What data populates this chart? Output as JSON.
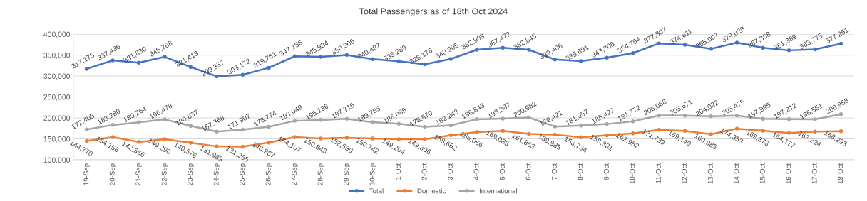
{
  "chart_data": {
    "type": "line",
    "title": "Total Passengers as of 18th Oct 2024",
    "categories": [
      "19-Sep",
      "20-Sep",
      "21-Sep",
      "22-Sep",
      "23-Sep",
      "24-Sep",
      "25-Sep",
      "26-Sep",
      "27-Sep",
      "28-Sep",
      "29-Sep",
      "30-Sep",
      "1-Oct",
      "2-Oct",
      "3-Oct",
      "4-Oct",
      "5-Oct",
      "6-Oct",
      "7-Oct",
      "8-Oct",
      "9-Oct",
      "10-Oct",
      "11-Oct",
      "12-Oct",
      "13-Oct",
      "14-Oct",
      "15-Oct",
      "16-Oct",
      "17-Oct",
      "18-Oct"
    ],
    "series": [
      {
        "name": "Total",
        "color": "#4472c4",
        "values": [
          317175,
          337436,
          331830,
          345768,
          321413,
          299357,
          303172,
          319761,
          347156,
          345984,
          350305,
          340497,
          335289,
          328176,
          340905,
          362909,
          367472,
          362845,
          339406,
          335691,
          343808,
          354754,
          377807,
          374811,
          365007,
          379828,
          367368,
          361389,
          363775,
          377251
        ],
        "value_labels": [
          "317,175",
          "337,436",
          "331,830",
          "345,768",
          "321,413",
          "299,357",
          "303,172",
          "319,761",
          "347,156",
          "345,984",
          "350,305",
          "340,497",
          "335,289",
          "328,176",
          "340,905",
          "362,909",
          "367,472",
          "362,845",
          "339,406",
          "335,691",
          "343,808",
          "354,754",
          "377,807",
          "374,811",
          "365,007",
          "379,828",
          "367,368",
          "361,389",
          "363,775",
          "377,251"
        ]
      },
      {
        "name": "Domestic",
        "color": "#ed7d31",
        "values": [
          144770,
          154156,
          142566,
          149290,
          140576,
          131989,
          131265,
          140987,
          154107,
          150848,
          152590,
          150742,
          149204,
          149306,
          158662,
          166066,
          169085,
          161863,
          159985,
          153734,
          158381,
          162982,
          171739,
          169140,
          160985,
          174353,
          169373,
          164177,
          167224,
          168293
        ],
        "value_labels": [
          "144,770",
          "154,156",
          "142,566",
          "149,290",
          "140,576",
          "131,989",
          "131,265",
          "140,987",
          "154,107",
          "150,848",
          "152,590",
          "150,742",
          "149,204",
          "149,306",
          "158,662",
          "166,066",
          "169,085",
          "161,863",
          "159,985",
          "153,734",
          "158,381",
          "162,982",
          "171,739",
          "169,140",
          "160,985",
          "174,353",
          "169,373",
          "164,177",
          "167,224",
          "168,293"
        ]
      },
      {
        "name": "International",
        "color": "#a5a5a5",
        "values": [
          172405,
          183280,
          189264,
          196478,
          180837,
          167368,
          171907,
          178774,
          193049,
          195136,
          197715,
          189755,
          186085,
          178870,
          182243,
          196843,
          198387,
          200982,
          179421,
          181957,
          185427,
          191772,
          206068,
          205671,
          204022,
          205475,
          197995,
          197212,
          196551,
          208958
        ],
        "value_labels": [
          "172,405",
          "183,280",
          "189,264",
          "196,478",
          "180,837",
          "167,368",
          "171,907",
          "178,774",
          "193,049",
          "195,136",
          "197,715",
          "189,755",
          "186,085",
          "178,870",
          "182,243",
          "196,843",
          "198,387",
          "200,982",
          "179,421",
          "181,957",
          "185,427",
          "191,772",
          "206,068",
          "205,671",
          "204,022",
          "205,475",
          "197,995",
          "197,212",
          "196,551",
          "208,958"
        ]
      }
    ],
    "ylim": [
      100000,
      400000
    ],
    "yticks": [
      {
        "value": 100000,
        "label": "100,000"
      },
      {
        "value": 150000,
        "label": "150,000"
      },
      {
        "value": 200000,
        "label": "200,000"
      },
      {
        "value": 250000,
        "label": "250,000"
      },
      {
        "value": 300000,
        "label": "300,000"
      },
      {
        "value": 350000,
        "label": "350,000"
      },
      {
        "value": 400000,
        "label": "400,000"
      }
    ],
    "grid": "y",
    "legend": "bottom",
    "marker": "circle",
    "line_style": "solid"
  }
}
